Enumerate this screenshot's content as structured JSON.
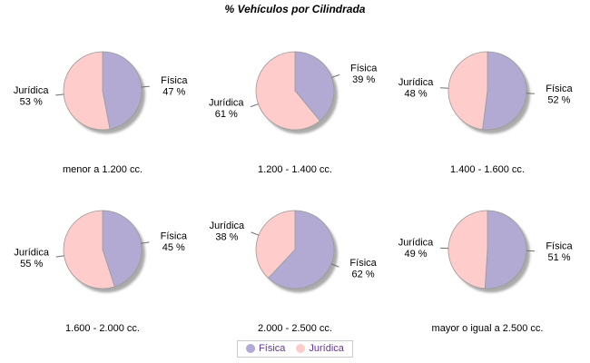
{
  "title": "% Vehículos por Cilindrada",
  "legend": {
    "items": [
      {
        "label": "Física",
        "color": "#b2aad2"
      },
      {
        "label": "Jurídica",
        "color": "#fdcccb"
      }
    ],
    "text_color": "#663399"
  },
  "style_colors": {
    "slice_border": "#9a9a9a",
    "shadow": "#969696",
    "leader_line": "#6e6e6e",
    "label_text": "#000000"
  },
  "value_suffix": " %",
  "chart_data": [
    {
      "type": "pie",
      "category": "menor a 1.200 cc.",
      "start_angle_deg": 0,
      "direction": "clockwise",
      "slices": [
        {
          "label": "Física",
          "value": 47
        },
        {
          "label": "Jurídica",
          "value": 53
        }
      ]
    },
    {
      "type": "pie",
      "category": "1.200 - 1.400 cc.",
      "start_angle_deg": 0,
      "direction": "clockwise",
      "slices": [
        {
          "label": "Física",
          "value": 39
        },
        {
          "label": "Jurídica",
          "value": 61
        }
      ]
    },
    {
      "type": "pie",
      "category": "1.400 - 1.600 cc.",
      "start_angle_deg": 0,
      "direction": "clockwise",
      "slices": [
        {
          "label": "Física",
          "value": 52
        },
        {
          "label": "Jurídica",
          "value": 48
        }
      ]
    },
    {
      "type": "pie",
      "category": "1.600 - 2.000 cc.",
      "start_angle_deg": 0,
      "direction": "clockwise",
      "slices": [
        {
          "label": "Física",
          "value": 45
        },
        {
          "label": "Jurídica",
          "value": 55
        }
      ]
    },
    {
      "type": "pie",
      "category": "2.000 - 2.500 cc.",
      "start_angle_deg": 0,
      "direction": "clockwise",
      "slices": [
        {
          "label": "Física",
          "value": 62
        },
        {
          "label": "Jurídica",
          "value": 38
        }
      ]
    },
    {
      "type": "pie",
      "category": "mayor o igual a 2.500 cc.",
      "start_angle_deg": 0,
      "direction": "clockwise",
      "slices": [
        {
          "label": "Física",
          "value": 51
        },
        {
          "label": "Jurídica",
          "value": 49
        }
      ]
    }
  ]
}
